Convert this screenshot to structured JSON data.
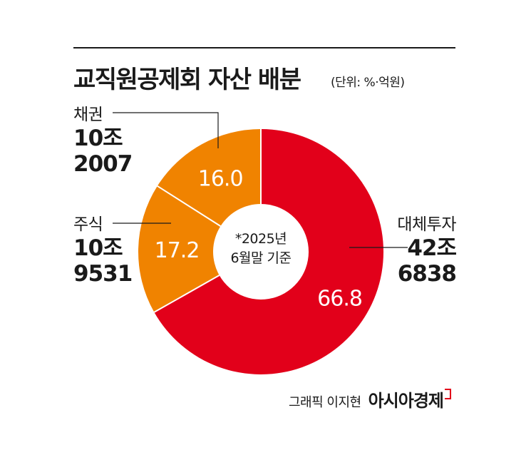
{
  "header": {
    "title": "교직원공제회 자산 배분",
    "unit": "(단위: %·억원)"
  },
  "chart_data": {
    "type": "pie",
    "donut": true,
    "categories": [
      "대체투자",
      "주식",
      "채권"
    ],
    "values": [
      66.8,
      17.2,
      16.0
    ],
    "value_labels": [
      "66.8",
      "17.2",
      "16.0"
    ],
    "colors": [
      "#e2001a",
      "#f08300",
      "#f08300"
    ],
    "amounts": [
      {
        "category": "대체투자",
        "line1": "42조",
        "line2": "6838"
      },
      {
        "category": "주식",
        "line1": "10조",
        "line2": "9531"
      },
      {
        "category": "채권",
        "line1": "10조",
        "line2": "2007"
      }
    ],
    "center_note": [
      "*2025년",
      "6월말 기준"
    ]
  },
  "credit": {
    "author": "그래픽 이지현",
    "brand": "아시아경제"
  }
}
